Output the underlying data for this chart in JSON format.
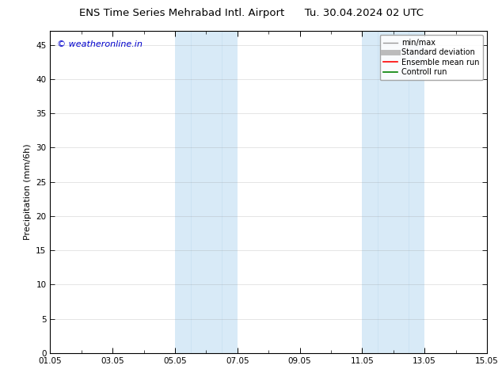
{
  "title_left": "ENS Time Series Mehrabad Intl. Airport",
  "title_right": "Tu. 30.04.2024 02 UTC",
  "xlabel": "",
  "ylabel": "Precipitation (mm/6h)",
  "ylim": [
    0,
    47
  ],
  "yticks": [
    0,
    5,
    10,
    15,
    20,
    25,
    30,
    35,
    40,
    45
  ],
  "xtick_labels": [
    "01.05",
    "03.05",
    "05.05",
    "07.05",
    "09.05",
    "11.05",
    "13.05",
    "15.05"
  ],
  "xtick_positions": [
    0,
    2,
    4,
    6,
    8,
    10,
    12,
    14
  ],
  "shaded_regions": [
    {
      "xstart": 4.0,
      "xend": 5.0,
      "color": "#d8eaf7"
    },
    {
      "xstart": 5.0,
      "xend": 6.0,
      "color": "#d8eaf7"
    },
    {
      "xstart": 10.0,
      "xend": 11.0,
      "color": "#d8eaf7"
    },
    {
      "xstart": 11.0,
      "xend": 12.0,
      "color": "#d8eaf7"
    }
  ],
  "legend_entries": [
    {
      "label": "min/max",
      "color": "#999999",
      "lw": 1.0,
      "linestyle": "-"
    },
    {
      "label": "Standard deviation",
      "color": "#bbbbbb",
      "lw": 5,
      "linestyle": "-"
    },
    {
      "label": "Ensemble mean run",
      "color": "#ff0000",
      "lw": 1.2,
      "linestyle": "-"
    },
    {
      "label": "Controll run",
      "color": "#008000",
      "lw": 1.2,
      "linestyle": "-"
    }
  ],
  "watermark_text": "© weatheronline.in",
  "watermark_color": "#0000cc",
  "watermark_fontsize": 8,
  "background_color": "#ffffff",
  "plot_bg_color": "#ffffff",
  "title_fontsize": 9.5,
  "ylabel_fontsize": 8,
  "tick_fontsize": 7.5,
  "legend_fontsize": 7,
  "grid_color": "#888888",
  "grid_alpha": 0.3,
  "grid_lw": 0.5
}
